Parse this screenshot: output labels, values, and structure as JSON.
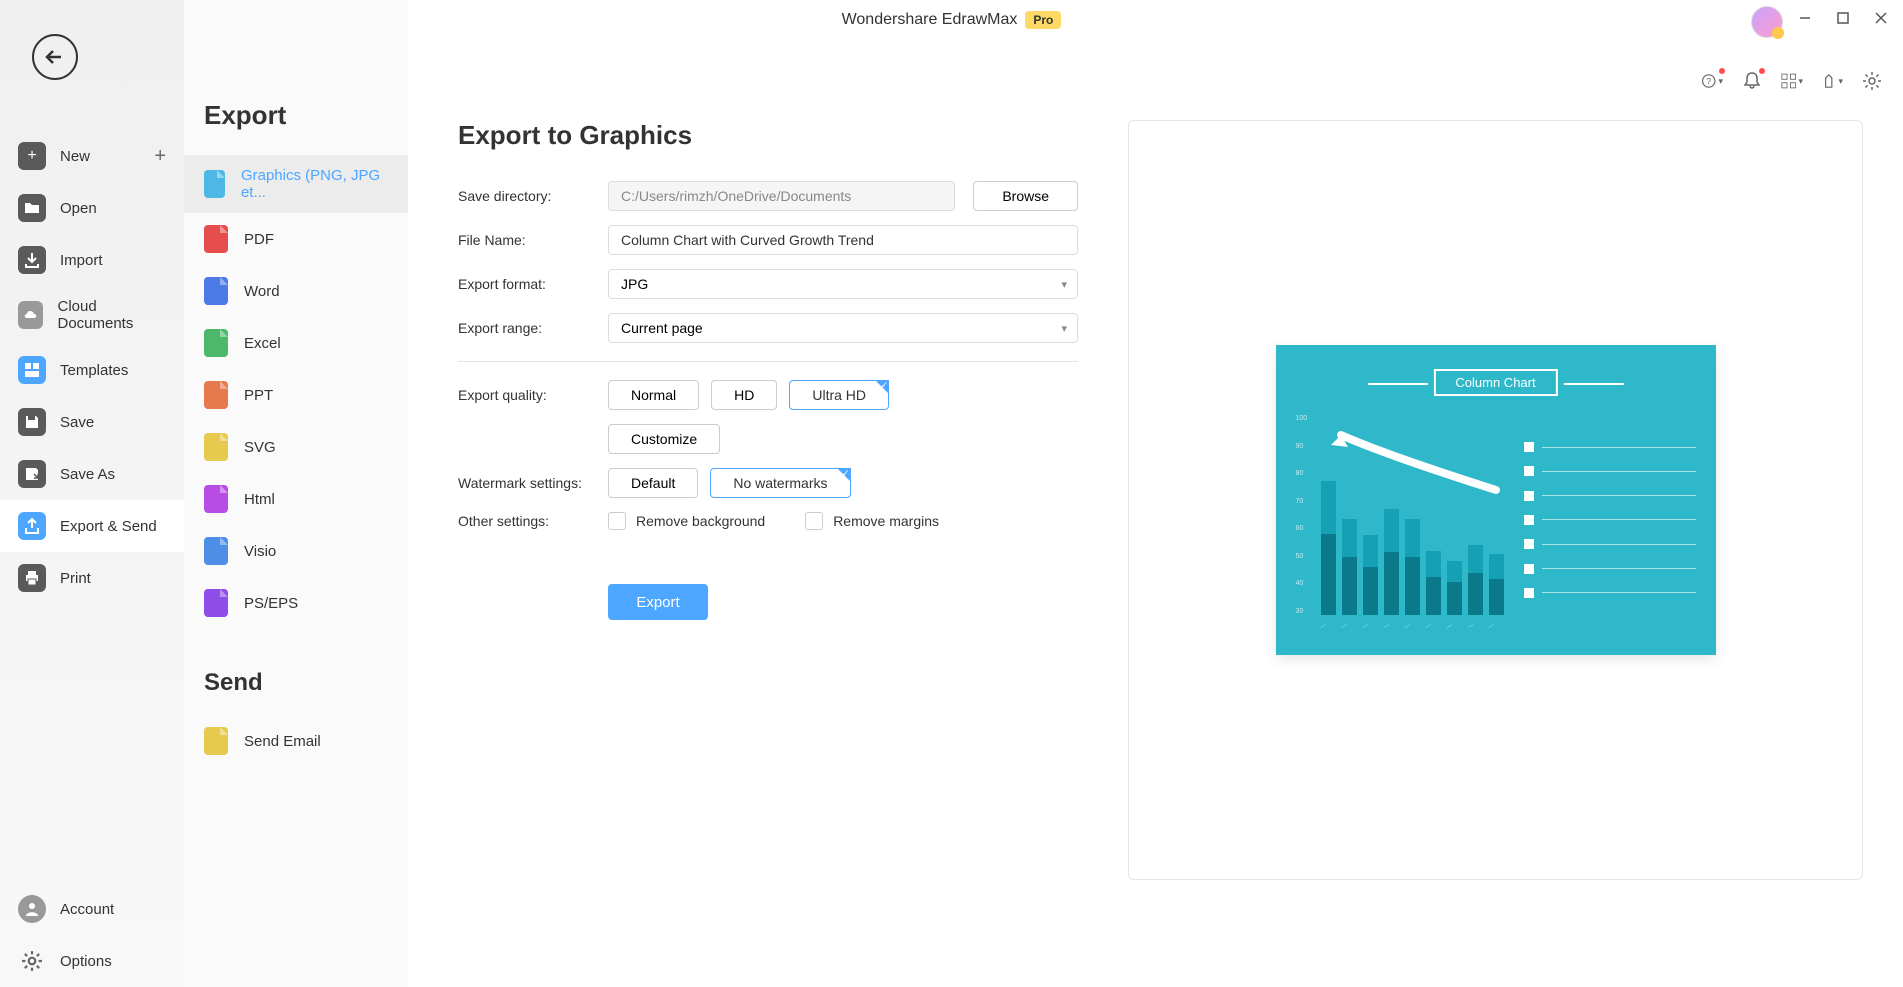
{
  "titlebar": {
    "app_name": "Wondershare EdrawMax",
    "badge": "Pro"
  },
  "left_nav": {
    "items": [
      {
        "label": "New",
        "icon": "plus",
        "has_add": true
      },
      {
        "label": "Open",
        "icon": "folder"
      },
      {
        "label": "Import",
        "icon": "download"
      },
      {
        "label": "Cloud Documents",
        "icon": "cloud"
      },
      {
        "label": "Templates",
        "icon": "templates"
      },
      {
        "label": "Save",
        "icon": "save"
      },
      {
        "label": "Save As",
        "icon": "saveas"
      },
      {
        "label": "Export & Send",
        "icon": "export",
        "active": true
      },
      {
        "label": "Print",
        "icon": "print"
      }
    ],
    "footer": [
      {
        "label": "Account",
        "icon": "account"
      },
      {
        "label": "Options",
        "icon": "options"
      }
    ]
  },
  "export_sidebar": {
    "header": "Export",
    "formats": [
      {
        "label": "Graphics (PNG, JPG et...",
        "icon": "img",
        "active": true
      },
      {
        "label": "PDF",
        "icon": "pdf"
      },
      {
        "label": "Word",
        "icon": "word"
      },
      {
        "label": "Excel",
        "icon": "excel"
      },
      {
        "label": "PPT",
        "icon": "ppt"
      },
      {
        "label": "SVG",
        "icon": "svg"
      },
      {
        "label": "Html",
        "icon": "html"
      },
      {
        "label": "Visio",
        "icon": "visio"
      },
      {
        "label": "PS/EPS",
        "icon": "ps"
      }
    ],
    "send_header": "Send",
    "send_items": [
      {
        "label": "Send Email",
        "icon": "email"
      }
    ]
  },
  "form": {
    "title": "Export to Graphics",
    "save_dir_label": "Save directory:",
    "save_dir_value": "C:/Users/rimzh/OneDrive/Documents",
    "browse_label": "Browse",
    "filename_label": "File Name:",
    "filename_value": "Column Chart with Curved Growth Trend",
    "format_label": "Export format:",
    "format_value": "JPG",
    "range_label": "Export range:",
    "range_value": "Current page",
    "quality_label": "Export quality:",
    "quality_options": [
      "Normal",
      "HD",
      "Ultra HD"
    ],
    "quality_selected": "Ultra HD",
    "customize_label": "Customize",
    "watermark_label": "Watermark settings:",
    "watermark_options": [
      "Default",
      "No watermarks"
    ],
    "watermark_selected": "No watermarks",
    "other_label": "Other settings:",
    "remove_bg_label": "Remove background",
    "remove_margins_label": "Remove margins",
    "export_button": "Export"
  },
  "preview_chart": {
    "type": "bar",
    "title": "Column Chart",
    "background_color": "#2fb8c9",
    "bar_fill_top": "#15a0b5",
    "bar_fill_bottom": "#0a7a8a",
    "text_color": "#ffffff",
    "bar_heights_pct": [
      84,
      60,
      50,
      66,
      60,
      40,
      34,
      44,
      38
    ],
    "y_ticks": [
      "100",
      "90",
      "80",
      "70",
      "60",
      "50",
      "40",
      "30"
    ],
    "legend_rows": 7,
    "trend_arrow_color": "#ffffff"
  }
}
